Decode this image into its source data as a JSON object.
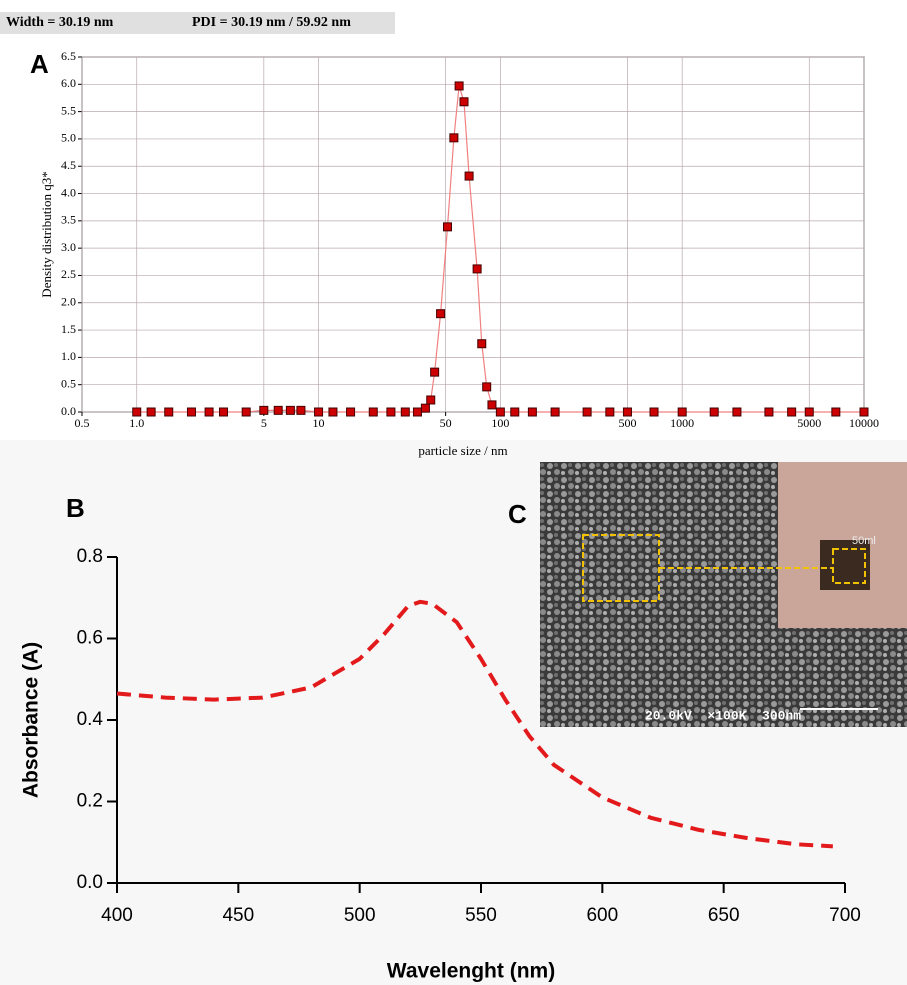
{
  "header": [
    "Width = 30.19 nm",
    "PDI = 30.19 nm / 59.92 nm"
  ],
  "image_panel": {
    "panel_label": "C",
    "caption": "20.0kV  ×100K  300nm",
    "vial_label": "50ml"
  },
  "chart_data": [
    {
      "type": "scatter",
      "panel_label": "A",
      "y_label": "Density distribution q3*",
      "x_label": "particle size / nm",
      "log_x": true,
      "grid": true,
      "color": "#cc0000",
      "line_color": "#f08080",
      "xlim": [
        0.5,
        10000
      ],
      "xticks": [
        0.5,
        {
          "value": 1,
          "label": "1.0"
        },
        5,
        10,
        50,
        100,
        500,
        1000,
        5000,
        10000
      ],
      "ylim": [
        0,
        6.5
      ],
      "yticks": [
        {
          "value": 0,
          "label": "0.0"
        },
        0.5,
        {
          "value": 1,
          "label": "1.0"
        },
        1.5,
        {
          "value": 2,
          "label": "2.0"
        },
        2.5,
        {
          "value": 3,
          "label": "3.0"
        },
        3.5,
        {
          "value": 4,
          "label": "4.0"
        },
        4.5,
        {
          "value": 5,
          "label": "5.0"
        },
        5.5,
        {
          "value": 6,
          "label": "6.0"
        },
        6.5
      ],
      "x": [
        1,
        1.2,
        1.5,
        2,
        2.5,
        3,
        4,
        5,
        6,
        7,
        8,
        10,
        12,
        15,
        20,
        25,
        30,
        35,
        38.7,
        41.4,
        43.5,
        46.9,
        51.2,
        55.5,
        59.3,
        63.1,
        67.3,
        74.5,
        79,
        84.1,
        89.9,
        100,
        120,
        150,
        200,
        300,
        400,
        500,
        700,
        1000,
        1500,
        2000,
        3000,
        4000,
        5000,
        7000,
        10000
      ],
      "values": [
        0,
        0,
        0,
        0,
        0,
        0,
        0,
        0.03,
        0.03,
        0.03,
        0.03,
        0,
        0,
        0,
        0,
        0,
        0,
        0,
        0.07,
        0.22,
        0.73,
        1.8,
        3.39,
        5.02,
        5.97,
        5.68,
        4.32,
        2.62,
        1.25,
        0.46,
        0.13,
        0,
        0,
        0,
        0,
        0,
        0,
        0,
        0,
        0,
        0,
        0,
        0,
        0,
        0,
        0,
        0
      ]
    },
    {
      "type": "line",
      "panel_label": "B",
      "y_label": "Absorbance (A)",
      "x_label": "Wavelenght (nm)",
      "color": "#e31a1c",
      "xlim": [
        400,
        700
      ],
      "xticks": [
        400,
        450,
        500,
        550,
        600,
        650,
        700
      ],
      "ylim": [
        0,
        0.8
      ],
      "yticks": [
        {
          "value": 0,
          "label": "0.0"
        },
        0.2,
        0.4,
        0.6,
        0.8
      ],
      "x": [
        400,
        420,
        440,
        460,
        480,
        500,
        510,
        520,
        525,
        530,
        540,
        550,
        560,
        570,
        580,
        600,
        620,
        640,
        660,
        680,
        695
      ],
      "values": [
        0.465,
        0.455,
        0.45,
        0.455,
        0.48,
        0.55,
        0.61,
        0.68,
        0.69,
        0.685,
        0.64,
        0.55,
        0.45,
        0.36,
        0.29,
        0.21,
        0.16,
        0.13,
        0.11,
        0.095,
        0.09
      ]
    }
  ]
}
